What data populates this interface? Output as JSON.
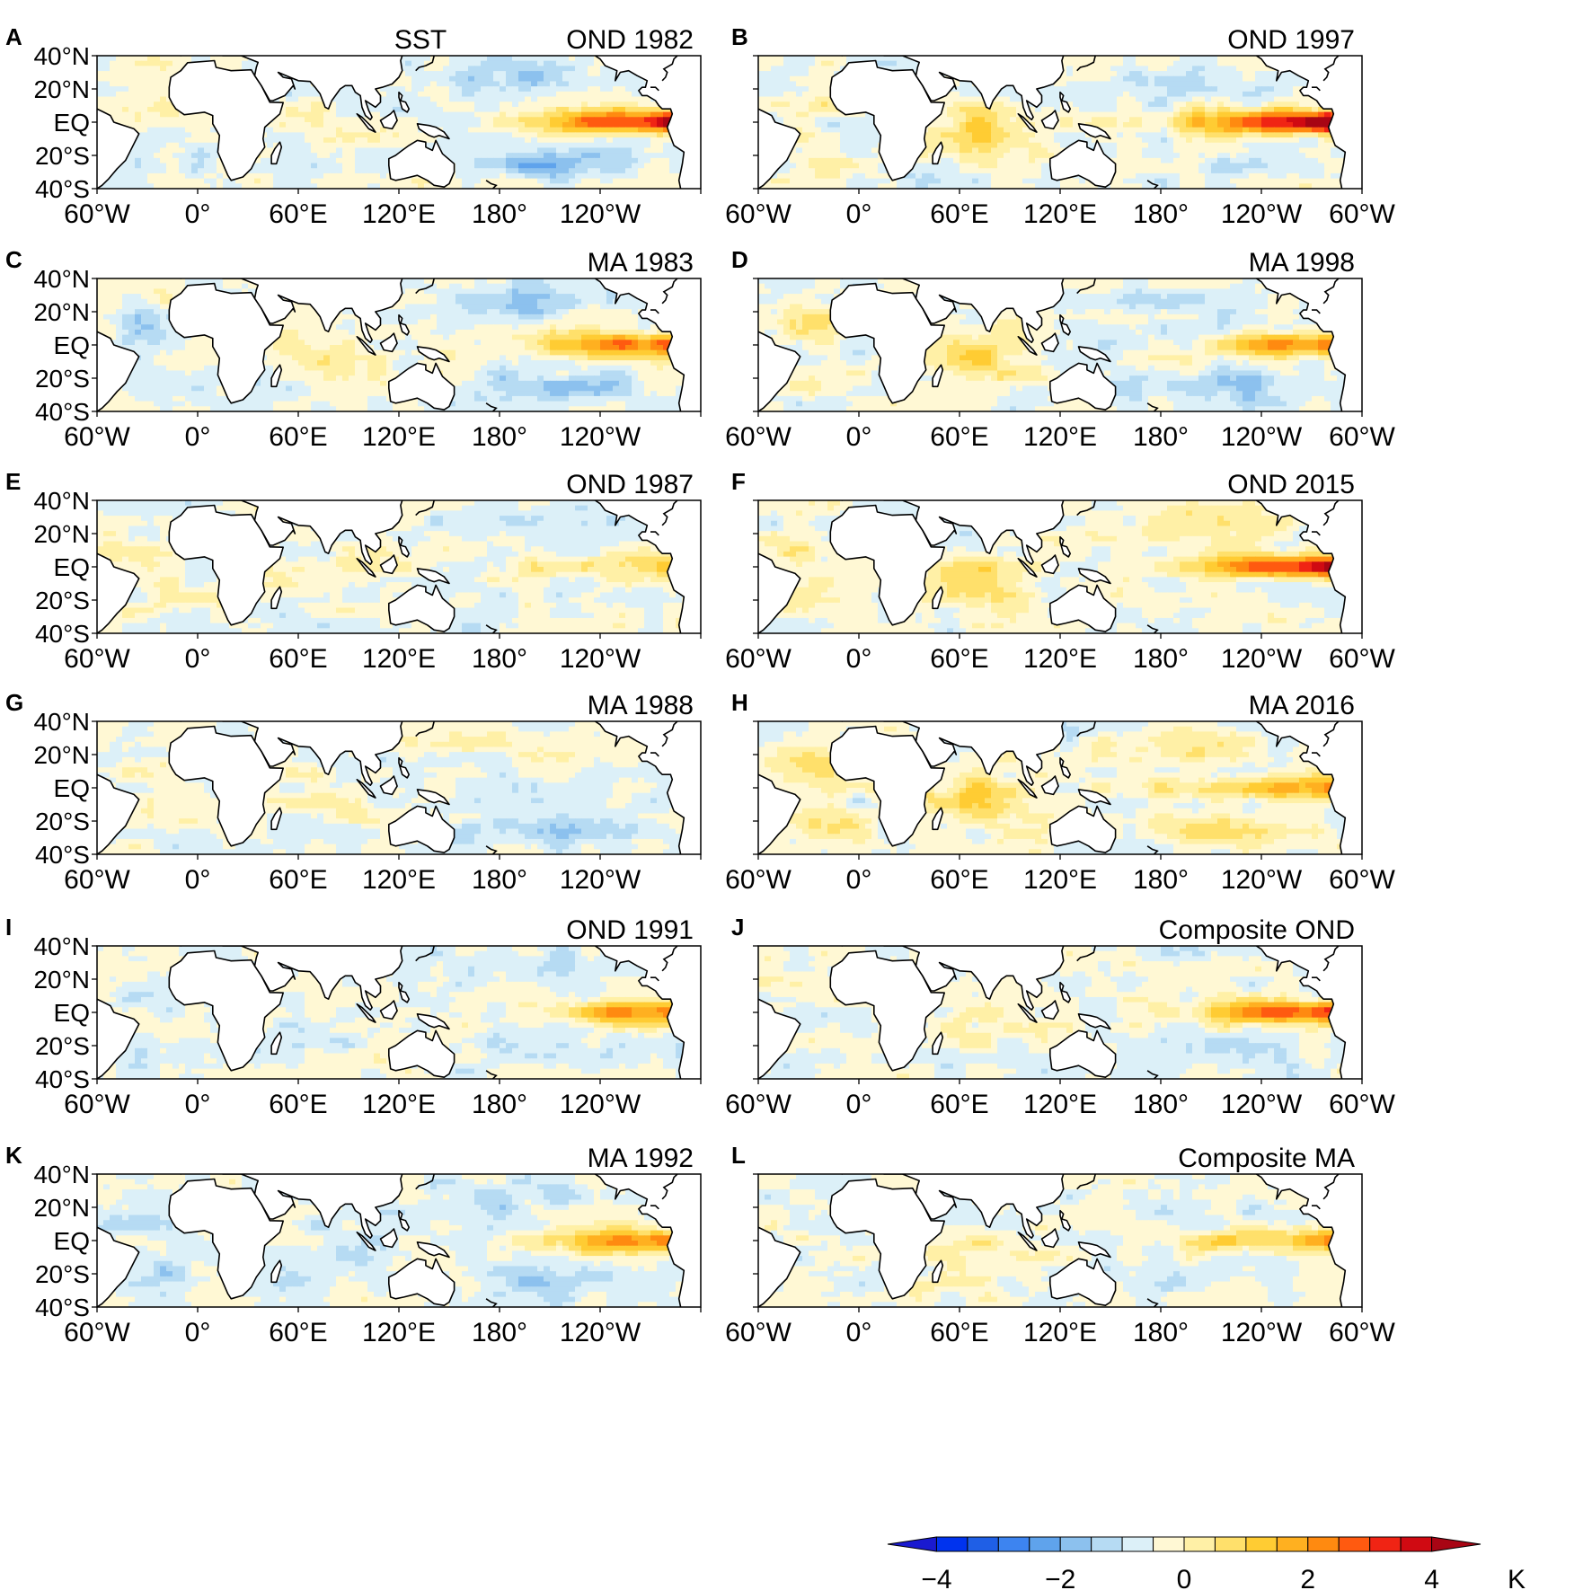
{
  "chart_data": {
    "type": "heatmap",
    "variable_label": "SST",
    "unit": "K",
    "colorbar": {
      "ticks": [
        -4,
        -2,
        0,
        2,
        4
      ],
      "tick_labels": [
        "−4",
        "−2",
        "0",
        "2",
        "4"
      ],
      "range": [
        -4,
        4
      ],
      "step": 0.5,
      "colors": [
        "#1a1ad0",
        "#0033ee",
        "#1f5fe6",
        "#3d84f0",
        "#5fa3ec",
        "#8cc1ee",
        "#b6dbf3",
        "#dcf0f8",
        "#fff8d4",
        "#fff0a6",
        "#ffe06b",
        "#ffcc33",
        "#ffb020",
        "#ff8a10",
        "#ff5a10",
        "#f02414",
        "#d00a12",
        "#a80514"
      ],
      "extend": "both"
    },
    "panels": [
      {
        "letter": "A",
        "title": "OND 1982",
        "variable": "SST",
        "anomaly_structure": {
          "nino": 3.6,
          "width": 1.0,
          "io": 0.3,
          "npac": -1.0,
          "spac": -1.4,
          "atl": -0.2,
          "tatl": 0.4
        }
      },
      {
        "letter": "B",
        "title": "OND 1997",
        "variable": "",
        "anomaly_structure": {
          "nino": 4.2,
          "width": 1.0,
          "io": 1.6,
          "npac": -0.4,
          "spac": -0.5,
          "atl": 0.5,
          "tatl": 0.6
        }
      },
      {
        "letter": "C",
        "title": "MA 1983",
        "variable": "",
        "anomaly_structure": {
          "nino": 2.8,
          "width": 0.9,
          "io": 0.6,
          "npac": -1.4,
          "spac": -1.2,
          "atl": -0.4,
          "tatl": -0.6
        }
      },
      {
        "letter": "D",
        "title": "MA 1998",
        "variable": "",
        "anomaly_structure": {
          "nino": 2.5,
          "width": 0.8,
          "io": 1.3,
          "npac": -0.5,
          "spac": -1.2,
          "atl": 0.5,
          "tatl": 0.8
        }
      },
      {
        "letter": "E",
        "title": "OND 1987",
        "variable": "",
        "anomaly_structure": {
          "nino": 1.4,
          "width": 1.3,
          "io": 0.5,
          "npac": -0.6,
          "spac": 0.1,
          "atl": 0.5,
          "tatl": 0.6
        }
      },
      {
        "letter": "F",
        "title": "OND 2015",
        "variable": "",
        "anomaly_structure": {
          "nino": 3.6,
          "width": 1.0,
          "io": 1.4,
          "npac": 1.0,
          "spac": 0.4,
          "atl": 0.8,
          "tatl": 0.8
        }
      },
      {
        "letter": "G",
        "title": "MA 1988",
        "variable": "",
        "anomaly_structure": {
          "nino": -0.2,
          "width": 1.0,
          "io": 0.5,
          "npac": 0.6,
          "spac": -1.0,
          "atl": 0.3,
          "tatl": 0.5
        }
      },
      {
        "letter": "H",
        "title": "MA 2016",
        "variable": "",
        "anomaly_structure": {
          "nino": 1.9,
          "width": 1.3,
          "io": 1.6,
          "npac": 1.2,
          "spac": 0.9,
          "atl": 0.9,
          "tatl": 1.0
        }
      },
      {
        "letter": "I",
        "title": "OND 1991",
        "variable": "",
        "anomaly_structure": {
          "nino": 2.6,
          "width": 0.7,
          "io": -0.3,
          "npac": -0.5,
          "spac": -0.4,
          "atl": -0.5,
          "tatl": -0.5
        }
      },
      {
        "letter": "J",
        "title": "Composite  OND",
        "variable": "",
        "anomaly_structure": {
          "nino": 3.0,
          "width": 0.9,
          "io": 0.6,
          "npac": -0.2,
          "spac": -0.6,
          "atl": 0.2,
          "tatl": 0.3
        }
      },
      {
        "letter": "K",
        "title": "MA 1992",
        "variable": "",
        "anomaly_structure": {
          "nino": 2.2,
          "width": 0.8,
          "io": -0.5,
          "npac": -0.6,
          "spac": -0.8,
          "atl": -0.8,
          "tatl": -0.6
        }
      },
      {
        "letter": "L",
        "title": "Composite  MA",
        "variable": "",
        "anomaly_structure": {
          "nino": 2.0,
          "width": 0.9,
          "io": 0.7,
          "npac": -0.2,
          "spac": -0.3,
          "atl": 0.1,
          "tatl": 0.2
        }
      }
    ],
    "lat_ticks": [
      {
        "value": 40,
        "label": "40°N"
      },
      {
        "value": 20,
        "label": "20°N"
      },
      {
        "value": 0,
        "label": "EQ"
      },
      {
        "value": -20,
        "label": "20°S"
      },
      {
        "value": -40,
        "label": "40°S"
      }
    ],
    "lon_ticks": [
      {
        "value": -60,
        "label": "60°W"
      },
      {
        "value": 0,
        "label": "0°"
      },
      {
        "value": 60,
        "label": "60°E"
      },
      {
        "value": 120,
        "label": "120°E"
      },
      {
        "value": 180,
        "label": "180°"
      },
      {
        "value": 240,
        "label": "120°W"
      },
      {
        "value": 300,
        "label": "60°W"
      }
    ],
    "lat_range": [
      -40,
      40
    ],
    "lon_range": [
      -60,
      300
    ]
  }
}
